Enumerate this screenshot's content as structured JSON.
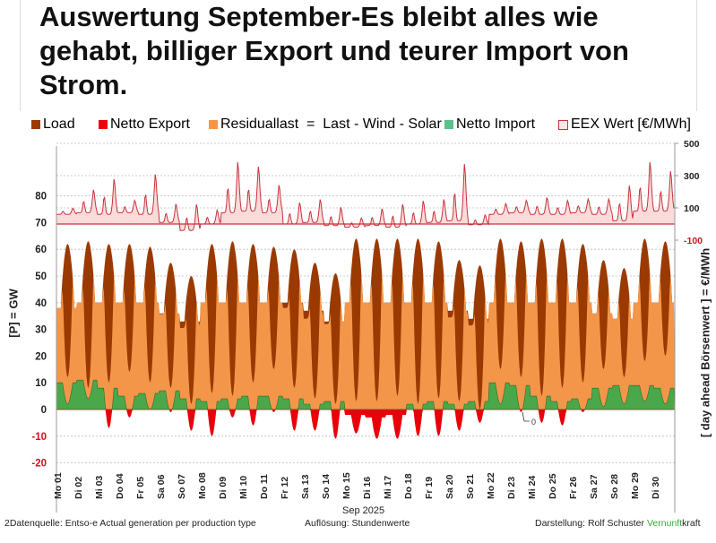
{
  "title": "Auswertung September-Es bleibt alles wie gehabt, billiger Export und teurer Import von Strom.",
  "colors": {
    "load": "#9a3a00",
    "residual": "#f4964a",
    "import": "#4aa84a",
    "export": "#e8000a",
    "price_fill": "#fbdada",
    "price_line": "#c8323c",
    "grid": "#bbbbbb",
    "negative_tick": "#d0101a"
  },
  "chart_data": {
    "type": "area",
    "legend": [
      {
        "name": "Load",
        "color": "#9a3a00"
      },
      {
        "name": "Netto Export",
        "color": "#e8000a"
      },
      {
        "name": "Residuallast  =  Last - Wind - Solar",
        "color": "#f4964a"
      },
      {
        "name": "Netto Import",
        "color": "#4aa84a"
      },
      {
        "name": "EEX Wert [€/MWh]",
        "color": "#fbdada"
      }
    ],
    "legend_position": "top",
    "ylabel_left": "[P]  = GW",
    "ylabel_right": "[ day ahead Börsenwert ]  = €/MWh",
    "xlabel": "Sep 2025",
    "left_ticks": [
      "80",
      "70",
      "60",
      "50",
      "40",
      "30",
      "20",
      "10",
      "0",
      "-10",
      "-20"
    ],
    "right_ticks": [
      "500",
      "300",
      "100",
      "-100"
    ],
    "ylim_left": [
      -20,
      90
    ],
    "ylim_right_price": [
      -100,
      500
    ],
    "grid": true,
    "annotation": "0",
    "days": [
      "Mo 01",
      "Di 02",
      "Mi 03",
      "Do 04",
      "Fr 05",
      "Sa 06",
      "So 07",
      "Mo 08",
      "Di 09",
      "Mi 10",
      "Do 11",
      "Fr 12",
      "Sa 13",
      "So 14",
      "Mo 15",
      "Di 16",
      "Mi 17",
      "Do 18",
      "Fr 19",
      "Sa 20",
      "So 21",
      "Mo 22",
      "Di 23",
      "Mi 24",
      "Do 25",
      "Fr 26",
      "Sa 27",
      "So 28",
      "Mo 29",
      "Di 30"
    ],
    "load_daily_max_gw": [
      62,
      63,
      62,
      62,
      61,
      55,
      50,
      62,
      63,
      62,
      61,
      60,
      55,
      51,
      64,
      64,
      64,
      64,
      63,
      56,
      54,
      64,
      63,
      64,
      64,
      62,
      56,
      53,
      64,
      63
    ],
    "load_daily_min_gw": [
      38,
      40,
      40,
      40,
      40,
      36,
      33,
      40,
      40,
      40,
      40,
      40,
      37,
      33,
      40,
      40,
      40,
      40,
      40,
      37,
      34,
      40,
      40,
      40,
      40,
      40,
      36,
      34,
      40,
      40
    ],
    "residual_daily_max_gw": [
      50,
      52,
      52,
      50,
      52,
      45,
      40,
      52,
      52,
      52,
      50,
      48,
      44,
      42,
      55,
      55,
      55,
      55,
      55,
      45,
      42,
      55,
      55,
      55,
      55,
      52,
      48,
      45,
      55,
      55
    ],
    "residual_daily_min_gw": [
      12,
      8,
      10,
      14,
      10,
      8,
      2,
      6,
      5,
      10,
      15,
      8,
      4,
      2,
      3,
      3,
      5,
      2,
      4,
      3,
      0,
      15,
      12,
      5,
      8,
      10,
      15,
      12,
      18,
      20
    ],
    "net_import_daily_max_gw": [
      10,
      11,
      8,
      5,
      6,
      7,
      4,
      3,
      4,
      5,
      5,
      4,
      2,
      3,
      -2,
      -3,
      -2,
      2,
      3,
      2,
      3,
      10,
      9,
      5,
      3,
      4,
      8,
      9,
      9,
      8
    ],
    "net_import_daily_min_gw": [
      2,
      4,
      -7,
      -3,
      0,
      -1,
      -8,
      -10,
      -3,
      -6,
      -1,
      -8,
      -8,
      -11,
      -9,
      -11,
      -11,
      -10,
      -10,
      -8,
      -5,
      2,
      -1,
      -5,
      -6,
      -1,
      1,
      2,
      3,
      2
    ],
    "price_daily_max_eur_mwh": [
      100,
      220,
      290,
      150,
      320,
      130,
      130,
      90,
      400,
      370,
      250,
      140,
      160,
      110,
      40,
      100,
      130,
      150,
      160,
      390,
      60,
      130,
      150,
      170,
      150,
      160,
      160,
      250,
      400,
      340
    ],
    "price_daily_min_eur_mwh": [
      60,
      70,
      60,
      70,
      60,
      10,
      -40,
      0,
      70,
      80,
      70,
      0,
      10,
      -10,
      -20,
      -10,
      -20,
      0,
      10,
      20,
      -5,
      60,
      70,
      60,
      60,
      70,
      60,
      20,
      80,
      80
    ]
  },
  "footer": {
    "source": "2Datenquelle: Entso-e  Actual generation per production type",
    "resolution": "Auflösung: Stundenwerte",
    "author": "Darstellung:  Rolf Schuster",
    "brand_green": "Vernunft",
    "brand_black": "kraft"
  }
}
